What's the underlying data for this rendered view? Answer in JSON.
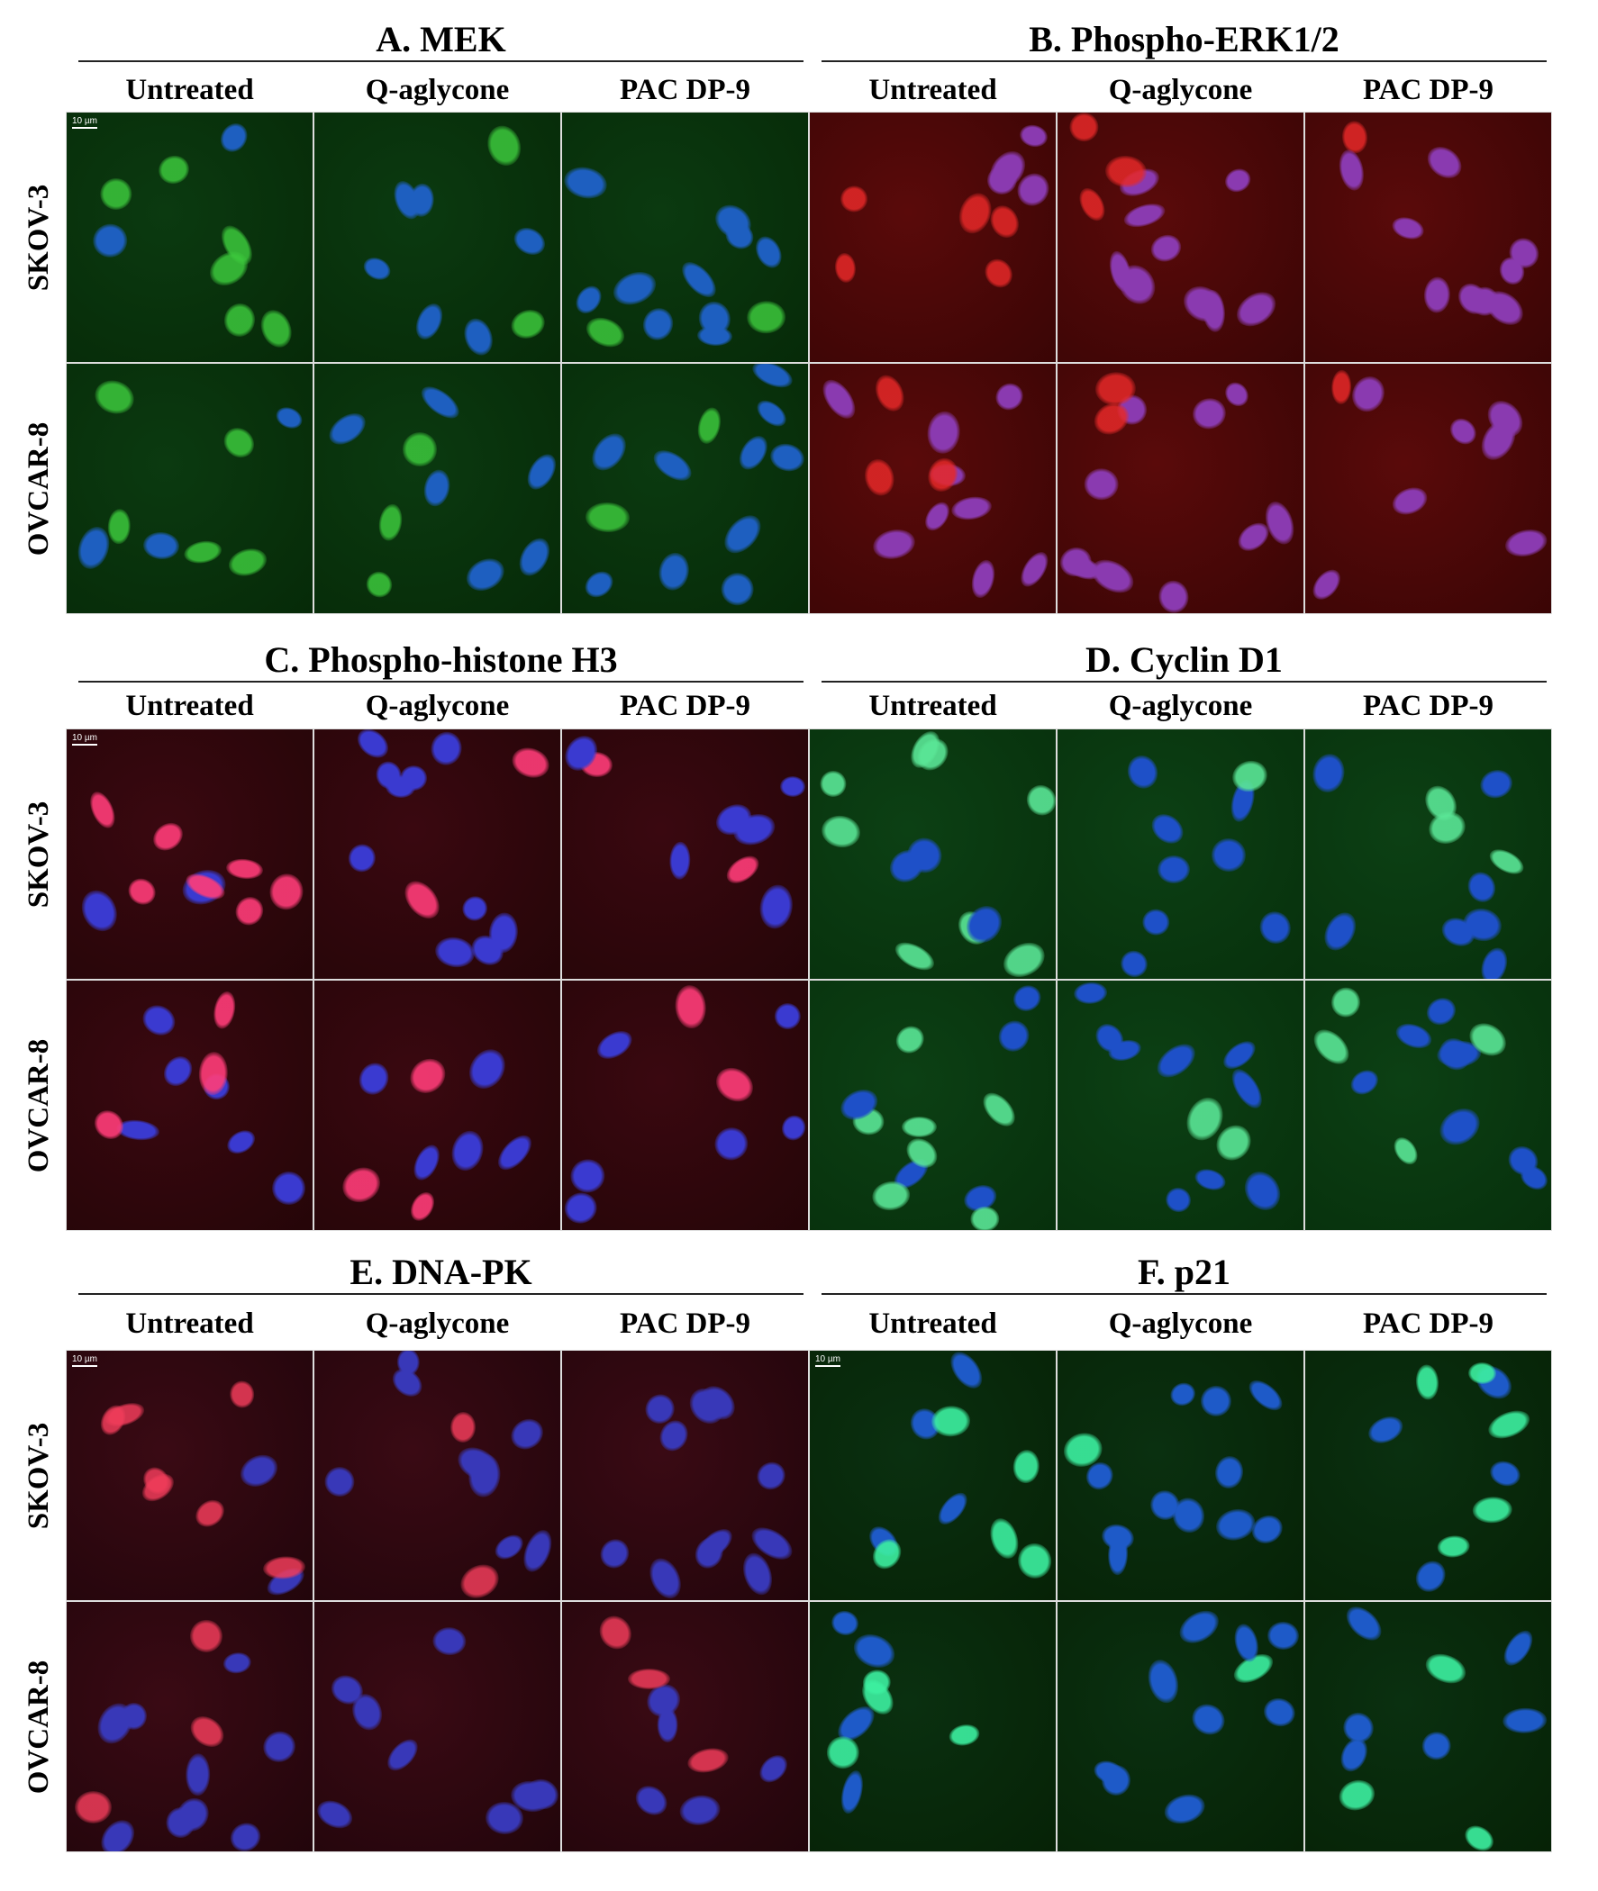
{
  "panels": [
    {
      "title": "A. MEK",
      "columns": [
        "Untreated",
        "Q-aglycone",
        "PAC DP-9"
      ],
      "scale_bar": "10 µm"
    },
    {
      "title": "B. Phospho-ERK1/2",
      "columns": [
        "Untreated",
        "Q-aglycone",
        "PAC DP-9"
      ]
    },
    {
      "title": "C. Phospho-histone H3",
      "columns": [
        "Untreated",
        "Q-aglycone",
        "PAC DP-9"
      ],
      "scale_bar": "10 µm"
    },
    {
      "title": "D. Cyclin D1",
      "columns": [
        "Untreated",
        "Q-aglycone",
        "PAC DP-9"
      ]
    },
    {
      "title": "E. DNA-PK",
      "columns": [
        "Untreated",
        "Q-aglycone",
        "PAC DP-9"
      ],
      "scale_bar": "10 µm"
    },
    {
      "title": "F. p21",
      "columns": [
        "Untreated",
        "Q-aglycone",
        "PAC DP-9"
      ],
      "scale_bar": "10 µm"
    }
  ],
  "row_labels": [
    [
      "SKOV-3",
      "OVCAR-8"
    ],
    [
      "SKOV-3",
      "OVCAR-8"
    ],
    [
      "SKOV-3",
      "OVCAR-8"
    ]
  ]
}
